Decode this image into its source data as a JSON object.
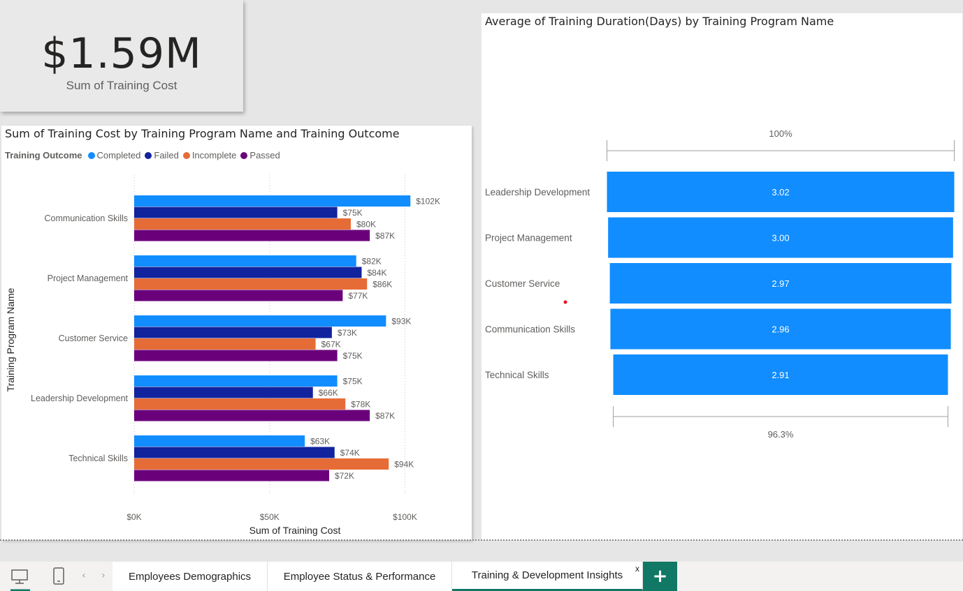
{
  "kpi": {
    "value": "$1.59M",
    "label": "Sum of Training Cost"
  },
  "colors": {
    "Completed": "#118dff",
    "Failed": "#12239e",
    "Incomplete": "#e66c37",
    "Passed": "#6b007b",
    "funnel": "#118dff",
    "tab_add": "#117865"
  },
  "bar_chart": {
    "title": "Sum of Training Cost by Training Program Name and Training Outcome",
    "legend_title": "Training Outcome",
    "xlabel": "Sum of Training Cost",
    "ylabel": "Training Program Name",
    "x_ticks": [
      "$0K",
      "$50K",
      "$100K"
    ]
  },
  "funnel_chart": {
    "title": "Average of Training Duration(Days) by Training Program Name",
    "top_pct": "100%",
    "bottom_pct": "96.3%"
  },
  "chart_data": [
    {
      "type": "bar",
      "orientation": "horizontal",
      "title": "Sum of Training Cost by Training Program Name and Training Outcome",
      "xlabel": "Sum of Training Cost",
      "ylabel": "Training Program Name",
      "xlim": [
        0,
        110
      ],
      "x_unit": "$K",
      "grid": true,
      "legend_position": "top-left",
      "categories": [
        "Communication Skills",
        "Project Management",
        "Customer Service",
        "Leadership Development",
        "Technical Skills"
      ],
      "series": [
        {
          "name": "Completed",
          "values": [
            102,
            82,
            93,
            75,
            63
          ],
          "labels": [
            "$102K",
            "$82K",
            "$93K",
            "$75K",
            "$63K"
          ]
        },
        {
          "name": "Failed",
          "values": [
            75,
            84,
            73,
            66,
            74
          ],
          "labels": [
            "$75K",
            "$84K",
            "$73K",
            "$66K",
            "$74K"
          ]
        },
        {
          "name": "Incomplete",
          "values": [
            80,
            86,
            67,
            78,
            94
          ],
          "labels": [
            "$80K",
            "$86K",
            "$67K",
            "$78K",
            "$94K"
          ]
        },
        {
          "name": "Passed",
          "values": [
            87,
            77,
            75,
            87,
            72
          ],
          "labels": [
            "$87K",
            "$77K",
            "$75K",
            "$87K",
            "$72K"
          ]
        }
      ]
    },
    {
      "type": "funnel",
      "title": "Average of Training Duration(Days) by Training Program Name",
      "categories": [
        "Leadership Development",
        "Project Management",
        "Customer Service",
        "Communication Skills",
        "Technical Skills"
      ],
      "values": [
        3.02,
        3.0,
        2.97,
        2.96,
        2.91
      ],
      "labels": [
        "3.02",
        "3.00",
        "2.97",
        "2.96",
        "2.91"
      ]
    }
  ],
  "tabs": [
    {
      "label": "Employees Demographics"
    },
    {
      "label": "Employee Status & Performance"
    },
    {
      "label": "Training & Development Insights",
      "close": "x"
    }
  ],
  "add_tab": "+"
}
